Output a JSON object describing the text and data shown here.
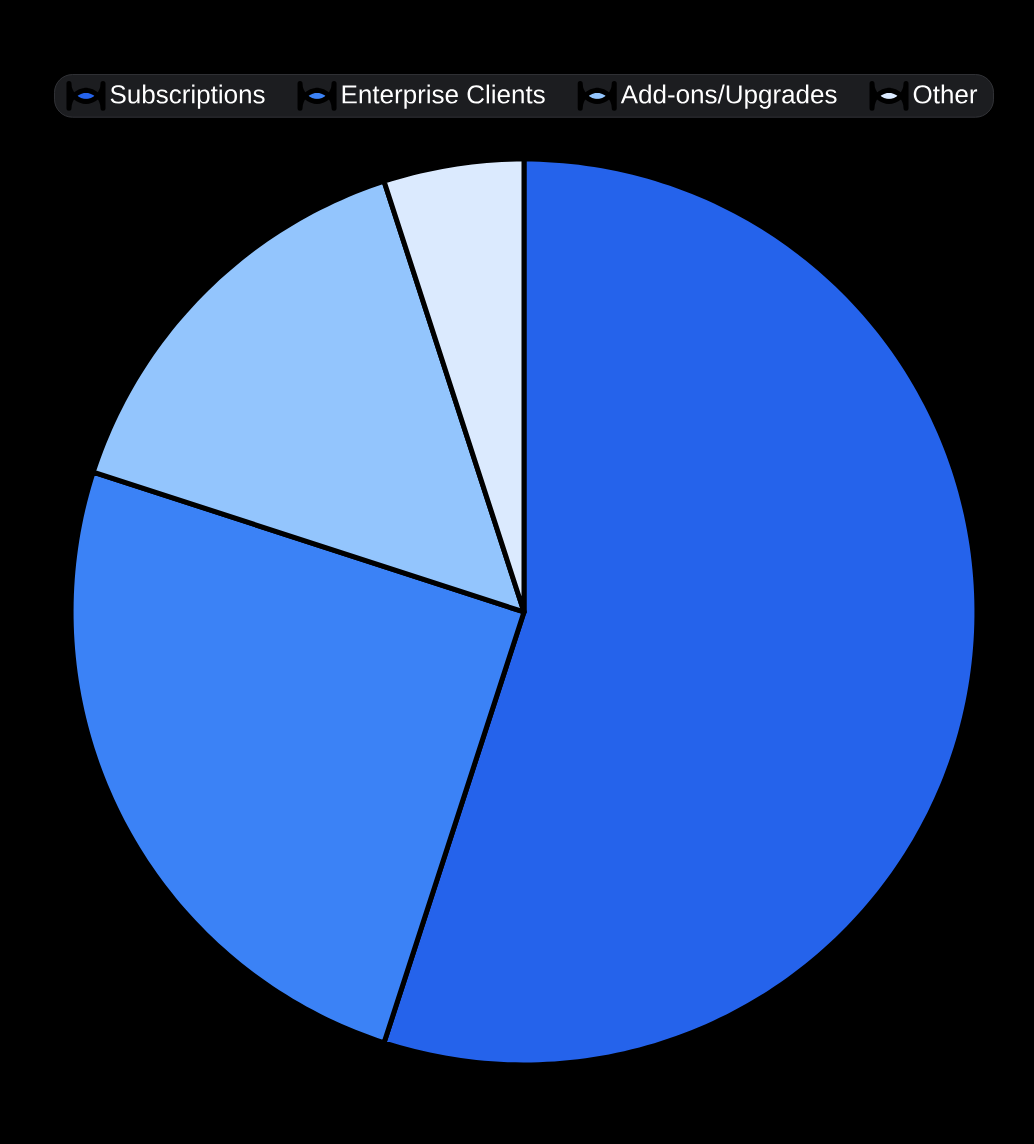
{
  "chart_data": {
    "type": "pie",
    "categories": [
      "Subscriptions",
      "Enterprise Clients",
      "Add-ons/Upgrades",
      "Other"
    ],
    "values": [
      55,
      25,
      15,
      5
    ],
    "colors": [
      "#2563eb",
      "#3b82f6",
      "#93c5fd",
      "#dbeafe"
    ],
    "legend": "top"
  }
}
